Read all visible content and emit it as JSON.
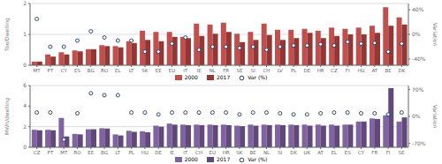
{
  "chart_data": [
    {
      "type": "bar",
      "categories": [
        "MT",
        "PT",
        "CY",
        "ES",
        "BG",
        "RO",
        "EL",
        "LT",
        "SK",
        "EE",
        "EU",
        "IT",
        "IE",
        "NL",
        "FR",
        "SE",
        "SI",
        "CH",
        "LV",
        "PL",
        "DE",
        "HR",
        "CZ",
        "FI",
        "HU",
        "AT",
        "BE",
        "DK"
      ],
      "series": [
        {
          "name": "2000",
          "color": "#c0504d",
          "values": [
            0.12,
            0.35,
            0.42,
            0.48,
            0.52,
            0.65,
            0.62,
            0.78,
            1.12,
            1.08,
            1.08,
            0.92,
            1.35,
            1.32,
            1.38,
            1.02,
            1.08,
            1.35,
            1.15,
            1.15,
            1.18,
            1.12,
            1.22,
            1.18,
            1.22,
            1.28,
            1.88,
            1.55
          ]
        },
        {
          "name": "2017",
          "color": "#943634",
          "values": [
            0.12,
            0.28,
            0.35,
            0.45,
            0.52,
            0.62,
            0.58,
            0.72,
            0.82,
            0.78,
            0.92,
            0.88,
            0.95,
            1.02,
            1.08,
            0.75,
            0.82,
            0.98,
            0.82,
            0.88,
            1.05,
            0.88,
            0.95,
            1.0,
            1.0,
            1.05,
            1.28,
            1.32
          ]
        },
        {
          "name": "Var (%)",
          "type": "scatter",
          "axis": "y2",
          "marker": "o",
          "color": "#1f3864",
          "values": [
            25,
            -20,
            -20,
            -10,
            5,
            -5,
            -10,
            -10,
            -28,
            -28,
            -15,
            -5,
            -25,
            -20,
            -20,
            -22,
            -20,
            -25,
            -20,
            -18,
            -18,
            -16,
            -18,
            -12,
            -15,
            -14,
            -28,
            -15
          ]
        }
      ],
      "ylabel": "Toe/Dwelling",
      "y2label": "Variation",
      "ylim": [
        0,
        2
      ],
      "yticks": [
        0,
        1,
        2
      ],
      "y2lim": [
        -50,
        50
      ],
      "y2ticks": [
        {
          "value": -40,
          "label": "-40%"
        },
        {
          "value": 0,
          "label": "0%"
        },
        {
          "value": 40,
          "label": "40%"
        }
      ],
      "grid": true,
      "legend": "bottom"
    },
    {
      "type": "bar",
      "categories": [
        "CZ",
        "PT",
        "MT",
        "RO",
        "EE",
        "BG",
        "LT",
        "PL",
        "HU",
        "DE",
        "IE",
        "IT",
        "CH",
        "EU",
        "HR",
        "SK",
        "BE",
        "NL",
        "SI",
        "DK",
        "UK",
        "AT",
        "EL",
        "ES",
        "CY",
        "FR",
        "FI",
        "SE"
      ],
      "series": [
        {
          "name": "2000",
          "color": "#8064a2",
          "values": [
            1.7,
            1.7,
            2.85,
            1.3,
            1.75,
            1.85,
            1.25,
            1.6,
            1.55,
            2.1,
            2.3,
            2.2,
            2.2,
            2.2,
            2.2,
            2.1,
            2.2,
            2.2,
            2.2,
            2.2,
            2.2,
            2.2,
            2.2,
            2.2,
            2.5,
            2.8,
            3.1,
            2.5
          ]
        },
        {
          "name": "2017",
          "color": "#60497a",
          "values": [
            1.65,
            1.65,
            1.05,
            1.25,
            1.75,
            1.82,
            1.15,
            1.5,
            1.45,
            2.0,
            2.2,
            2.15,
            2.15,
            2.15,
            2.15,
            2.05,
            2.1,
            2.15,
            2.15,
            2.15,
            2.1,
            2.1,
            2.1,
            2.2,
            2.5,
            2.75,
            5.75,
            2.9
          ]
        },
        {
          "name": "Var (%)",
          "type": "scatter",
          "axis": "y2",
          "marker": "o",
          "color": "#1f3864",
          "values": [
            10,
            10,
            -60,
            8,
            60,
            55,
            55,
            10,
            10,
            5,
            10,
            10,
            10,
            10,
            10,
            5,
            10,
            10,
            8,
            5,
            5,
            8,
            10,
            10,
            8,
            8,
            5,
            10
          ]
        }
      ],
      "ylabel": "MWh/dwelling",
      "y2label": "Variation",
      "ylim": [
        0,
        6
      ],
      "yticks": [
        0,
        2,
        4,
        6
      ],
      "y2lim": [
        -80,
        80
      ],
      "y2ticks": [
        {
          "value": -70,
          "label": "-70%"
        },
        {
          "value": 0,
          "label": "0%"
        },
        {
          "value": 70,
          "label": "70%"
        }
      ],
      "grid": true,
      "legend": "bottom"
    }
  ]
}
